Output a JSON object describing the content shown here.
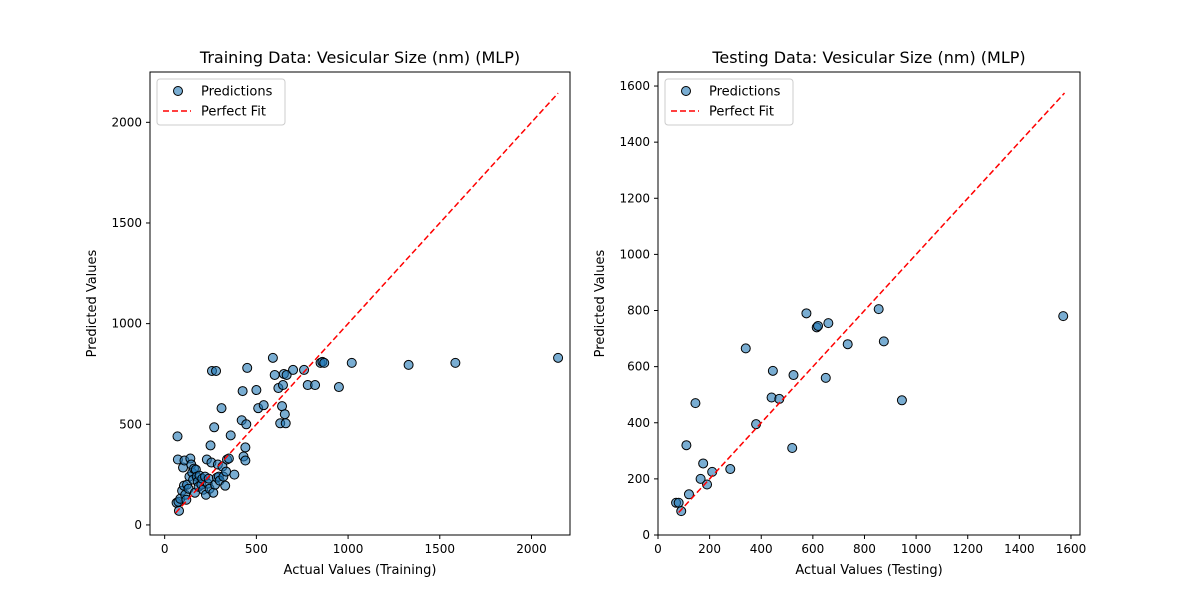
{
  "chart_data": [
    {
      "type": "scatter",
      "title": "Training Data: Vesicular  Size (nm) (MLP)",
      "xlabel": "Actual Values (Training)",
      "ylabel": "Predicted Values",
      "xlim": [
        -80,
        2210
      ],
      "ylim": [
        -50,
        2250
      ],
      "xticks": [
        "0",
        "500",
        "1000",
        "1500",
        "2000"
      ],
      "xtick_values": [
        0,
        500,
        1000,
        1500,
        2000
      ],
      "yticks": [
        "0",
        "500",
        "1000",
        "1500",
        "2000"
      ],
      "ytick_values": [
        0,
        500,
        1000,
        1500,
        2000
      ],
      "legend": {
        "position": "top-left",
        "entries": [
          "Predictions",
          "Perfect Fit"
        ]
      },
      "grid": false,
      "perfect_fit": {
        "from": [
          60,
          60
        ],
        "to": [
          2145,
          2145
        ]
      },
      "series": [
        {
          "name": "Predictions",
          "color": "#1f77b4",
          "points": [
            [
              65,
              110
            ],
            [
              70,
              440
            ],
            [
              72,
              325
            ],
            [
              75,
              115
            ],
            [
              78,
              70
            ],
            [
              85,
              130
            ],
            [
              95,
              170
            ],
            [
              100,
              285
            ],
            [
              105,
              195
            ],
            [
              108,
              320
            ],
            [
              112,
              150
            ],
            [
              118,
              125
            ],
            [
              122,
              200
            ],
            [
              130,
              180
            ],
            [
              135,
              240
            ],
            [
              140,
              330
            ],
            [
              145,
              300
            ],
            [
              150,
              260
            ],
            [
              155,
              225
            ],
            [
              160,
              280
            ],
            [
              165,
              160
            ],
            [
              170,
              275
            ],
            [
              175,
              240
            ],
            [
              180,
              215
            ],
            [
              185,
              190
            ],
            [
              190,
              245
            ],
            [
              200,
              200
            ],
            [
              205,
              230
            ],
            [
              210,
              175
            ],
            [
              220,
              240
            ],
            [
              225,
              150
            ],
            [
              230,
              325
            ],
            [
              235,
              205
            ],
            [
              240,
              230
            ],
            [
              245,
              180
            ],
            [
              250,
              395
            ],
            [
              255,
              310
            ],
            [
              258,
              765
            ],
            [
              265,
              160
            ],
            [
              270,
              485
            ],
            [
              275,
              200
            ],
            [
              280,
              765
            ],
            [
              285,
              235
            ],
            [
              290,
              300
            ],
            [
              295,
              240
            ],
            [
              300,
              220
            ],
            [
              310,
              580
            ],
            [
              315,
              290
            ],
            [
              320,
              240
            ],
            [
              330,
              195
            ],
            [
              335,
              265
            ],
            [
              340,
              325
            ],
            [
              350,
              330
            ],
            [
              360,
              445
            ],
            [
              380,
              250
            ],
            [
              420,
              520
            ],
            [
              425,
              665
            ],
            [
              430,
              340
            ],
            [
              440,
              385
            ],
            [
              440,
              320
            ],
            [
              445,
              500
            ],
            [
              450,
              780
            ],
            [
              500,
              670
            ],
            [
              510,
              580
            ],
            [
              540,
              595
            ],
            [
              590,
              830
            ],
            [
              600,
              745
            ],
            [
              620,
              680
            ],
            [
              630,
              505
            ],
            [
              640,
              590
            ],
            [
              645,
              695
            ],
            [
              650,
              750
            ],
            [
              655,
              550
            ],
            [
              660,
              505
            ],
            [
              665,
              745
            ],
            [
              700,
              770
            ],
            [
              760,
              770
            ],
            [
              780,
              695
            ],
            [
              820,
              695
            ],
            [
              850,
              805
            ],
            [
              860,
              810
            ],
            [
              870,
              805
            ],
            [
              950,
              685
            ],
            [
              1020,
              805
            ],
            [
              1330,
              795
            ],
            [
              1585,
              805
            ],
            [
              2145,
              830
            ]
          ]
        },
        {
          "name": "Perfect Fit",
          "color": "#ff0000"
        }
      ]
    },
    {
      "type": "scatter",
      "title": "Testing Data: Vesicular  Size (nm) (MLP)",
      "xlabel": "Actual Values (Testing)",
      "ylabel": "Predicted Values",
      "xlim": [
        0,
        1635
      ],
      "ylim": [
        0,
        1650
      ],
      "xticks": [
        "0",
        "200",
        "400",
        "600",
        "800",
        "1000",
        "1200",
        "1400",
        "1600"
      ],
      "xtick_values": [
        0,
        200,
        400,
        600,
        800,
        1000,
        1200,
        1400,
        1600
      ],
      "yticks": [
        "0",
        "200",
        "400",
        "600",
        "800",
        "1000",
        "1200",
        "1400",
        "1600"
      ],
      "ytick_values": [
        0,
        200,
        400,
        600,
        800,
        1000,
        1200,
        1400,
        1600
      ],
      "legend": {
        "position": "top-left",
        "entries": [
          "Predictions",
          "Perfect Fit"
        ]
      },
      "grid": false,
      "perfect_fit": {
        "from": [
          80,
          80
        ],
        "to": [
          1575,
          1575
        ]
      },
      "series": [
        {
          "name": "Predictions",
          "color": "#1f77b4",
          "points": [
            [
              70,
              115
            ],
            [
              80,
              115
            ],
            [
              90,
              85
            ],
            [
              110,
              320
            ],
            [
              120,
              145
            ],
            [
              145,
              470
            ],
            [
              165,
              200
            ],
            [
              175,
              255
            ],
            [
              190,
              180
            ],
            [
              210,
              225
            ],
            [
              280,
              235
            ],
            [
              340,
              665
            ],
            [
              380,
              395
            ],
            [
              440,
              490
            ],
            [
              445,
              585
            ],
            [
              470,
              485
            ],
            [
              520,
              310
            ],
            [
              525,
              570
            ],
            [
              575,
              790
            ],
            [
              615,
              740
            ],
            [
              620,
              745
            ],
            [
              650,
              560
            ],
            [
              660,
              755
            ],
            [
              735,
              680
            ],
            [
              855,
              805
            ],
            [
              875,
              690
            ],
            [
              945,
              480
            ],
            [
              1570,
              780
            ]
          ]
        },
        {
          "name": "Perfect Fit",
          "color": "#ff0000"
        }
      ]
    }
  ]
}
